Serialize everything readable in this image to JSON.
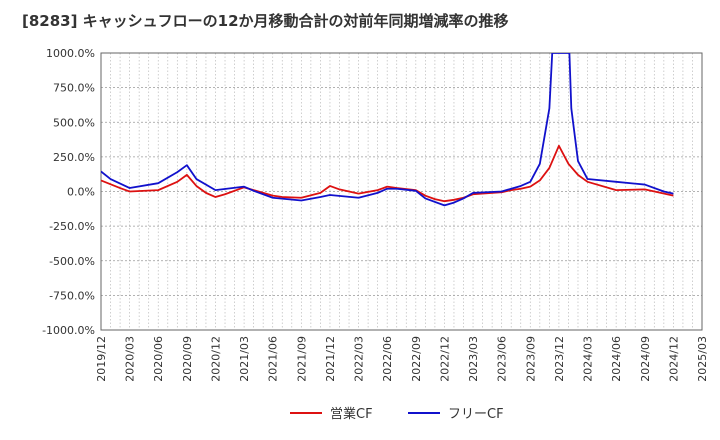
{
  "chart_data": {
    "type": "line",
    "title": "[8283]  キャッシュフローの12か月移動合計の対前年同期増減率の推移",
    "xlabel": "",
    "ylabel": "",
    "ylim": [
      -1000,
      1000
    ],
    "yticks": [
      1000,
      750,
      500,
      250,
      0,
      -250,
      -500,
      -750,
      -1000
    ],
    "ytick_labels": [
      "1000.0%",
      "750.0%",
      "500.0%",
      "250.0%",
      "0.0%",
      "-250.0%",
      "-500.0%",
      "-750.0%",
      "-1000.0%"
    ],
    "x_start": "2019-12",
    "x_end": "2025-03",
    "xtick_labels": [
      "2019/12",
      "2020/03",
      "2020/06",
      "2020/09",
      "2020/12",
      "2021/03",
      "2021/06",
      "2021/09",
      "2021/12",
      "2022/03",
      "2022/06",
      "2022/09",
      "2022/12",
      "2023/03",
      "2023/06",
      "2023/09",
      "2023/12",
      "2024/03",
      "2024/06",
      "2024/09",
      "2024/12",
      "2025/03"
    ],
    "grid": true,
    "legend_position": "bottom",
    "series": [
      {
        "name": "営業CF",
        "color": "#dd1111",
        "points": [
          [
            "2019-12",
            80
          ],
          [
            "2020-02",
            25
          ],
          [
            "2020-03",
            0
          ],
          [
            "2020-06",
            10
          ],
          [
            "2020-08",
            70
          ],
          [
            "2020-09",
            120
          ],
          [
            "2020-10",
            40
          ],
          [
            "2020-11",
            -10
          ],
          [
            "2020-12",
            -40
          ],
          [
            "2021-01",
            -20
          ],
          [
            "2021-03",
            30
          ],
          [
            "2021-04",
            10
          ],
          [
            "2021-06",
            -30
          ],
          [
            "2021-07",
            -40
          ],
          [
            "2021-09",
            -45
          ],
          [
            "2021-11",
            -10
          ],
          [
            "2021-12",
            40
          ],
          [
            "2022-01",
            15
          ],
          [
            "2022-03",
            -15
          ],
          [
            "2022-05",
            10
          ],
          [
            "2022-06",
            35
          ],
          [
            "2022-07",
            25
          ],
          [
            "2022-09",
            10
          ],
          [
            "2022-10",
            -30
          ],
          [
            "2022-11",
            -55
          ],
          [
            "2022-12",
            -70
          ],
          [
            "2023-01",
            -60
          ],
          [
            "2023-02",
            -45
          ],
          [
            "2023-03",
            -20
          ],
          [
            "2023-06",
            -5
          ],
          [
            "2023-07",
            10
          ],
          [
            "2023-08",
            20
          ],
          [
            "2023-09",
            35
          ],
          [
            "2023-10",
            80
          ],
          [
            "2023-11",
            170
          ],
          [
            "2023-12",
            330
          ],
          [
            "2024-01",
            200
          ],
          [
            "2024-02",
            120
          ],
          [
            "2024-03",
            70
          ],
          [
            "2024-06",
            10
          ],
          [
            "2024-09",
            15
          ],
          [
            "2024-12",
            -30
          ]
        ]
      },
      {
        "name": "フリーCF",
        "color": "#1111cc",
        "points": [
          [
            "2019-12",
            145
          ],
          [
            "2020-01",
            90
          ],
          [
            "2020-03",
            25
          ],
          [
            "2020-06",
            60
          ],
          [
            "2020-08",
            140
          ],
          [
            "2020-09",
            190
          ],
          [
            "2020-10",
            90
          ],
          [
            "2020-12",
            10
          ],
          [
            "2021-03",
            35
          ],
          [
            "2021-04",
            5
          ],
          [
            "2021-06",
            -45
          ],
          [
            "2021-09",
            -65
          ],
          [
            "2021-11",
            -40
          ],
          [
            "2021-12",
            -25
          ],
          [
            "2022-03",
            -45
          ],
          [
            "2022-05",
            -10
          ],
          [
            "2022-06",
            20
          ],
          [
            "2022-07",
            20
          ],
          [
            "2022-09",
            5
          ],
          [
            "2022-10",
            -50
          ],
          [
            "2022-12",
            -100
          ],
          [
            "2023-01",
            -80
          ],
          [
            "2023-02",
            -50
          ],
          [
            "2023-03",
            -10
          ],
          [
            "2023-06",
            0
          ],
          [
            "2023-07",
            20
          ],
          [
            "2023-08",
            40
          ],
          [
            "2023-09",
            70
          ],
          [
            "2023-10",
            200
          ],
          [
            "2023-11",
            600
          ],
          [
            "2023-11.3",
            1000
          ],
          [
            "2024-01.1",
            1000
          ],
          [
            "2024-01.3",
            600
          ],
          [
            "2024-02",
            220
          ],
          [
            "2024-03",
            90
          ],
          [
            "2024-06",
            70
          ],
          [
            "2024-09",
            50
          ],
          [
            "2024-11",
            0
          ],
          [
            "2024-12",
            -15
          ]
        ]
      }
    ]
  }
}
